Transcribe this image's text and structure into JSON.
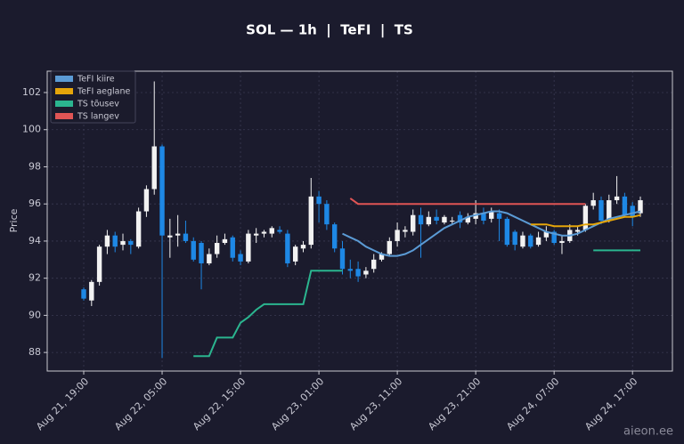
{
  "chart_data": {
    "type": "candlestick",
    "title": "SOL — 1h  |  TeFI  |  TS",
    "y_label": "Price",
    "watermark": "aieon.ee",
    "categories": [
      "Aug 21, 19:00",
      null,
      null,
      null,
      null,
      null,
      null,
      null,
      null,
      null,
      "Aug 22, 05:00",
      null,
      null,
      null,
      null,
      null,
      null,
      null,
      null,
      null,
      "Aug 22, 15:00",
      null,
      null,
      null,
      null,
      null,
      null,
      null,
      null,
      null,
      "Aug 23, 01:00",
      null,
      null,
      null,
      null,
      null,
      null,
      null,
      null,
      null,
      "Aug 23, 11:00",
      null,
      null,
      null,
      null,
      null,
      null,
      null,
      null,
      null,
      "Aug 23, 21:00",
      null,
      null,
      null,
      null,
      null,
      null,
      null,
      null,
      null,
      "Aug 24, 07:00",
      null,
      null,
      null,
      null,
      null,
      null,
      null,
      null,
      null,
      "Aug 24, 17:00",
      null
    ],
    "open": [
      91.4,
      90.8,
      91.8,
      93.7,
      94.3,
      93.8,
      94.0,
      93.7,
      95.6,
      96.8,
      99.1,
      94.2,
      94.3,
      94.4,
      94.0,
      93.9,
      92.8,
      93.3,
      93.9,
      94.2,
      93.3,
      92.9,
      94.3,
      94.4,
      94.4,
      94.6,
      94.4,
      92.9,
      93.6,
      93.8,
      96.4,
      96.0,
      94.9,
      93.6,
      92.5,
      92.5,
      92.2,
      92.5,
      93.0,
      93.3,
      94.0,
      94.5,
      94.5,
      95.4,
      94.9,
      95.3,
      95.0,
      95.1,
      95.4,
      95.0,
      95.2,
      95.5,
      95.2,
      95.5,
      95.2,
      94.5,
      93.7,
      94.3,
      93.8,
      94.2,
      94.5,
      93.9,
      94.0,
      94.5,
      94.6,
      95.9,
      96.2,
      95.1,
      96.2,
      96.4,
      95.9,
      95.5
    ],
    "high": [
      91.5,
      91.9,
      93.8,
      94.6,
      94.5,
      94.4,
      94.1,
      95.8,
      97.0,
      102.6,
      99.2,
      95.2,
      95.4,
      95.1,
      94.2,
      94.0,
      93.6,
      94.3,
      94.4,
      94.3,
      93.5,
      94.6,
      94.7,
      94.6,
      94.8,
      94.8,
      94.6,
      93.8,
      94.0,
      97.4,
      96.7,
      96.2,
      95.0,
      94.0,
      93.0,
      92.9,
      92.6,
      93.3,
      93.4,
      94.2,
      95.0,
      94.8,
      95.7,
      95.8,
      95.6,
      95.7,
      95.4,
      95.3,
      95.6,
      95.5,
      96.2,
      95.8,
      95.8,
      95.7,
      95.3,
      94.6,
      94.5,
      94.4,
      94.5,
      94.8,
      94.6,
      94.3,
      94.9,
      94.8,
      96.0,
      96.6,
      96.4,
      96.5,
      97.5,
      96.6,
      96.1,
      96.4
    ],
    "low": [
      90.8,
      90.5,
      91.6,
      93.3,
      93.4,
      93.5,
      93.3,
      93.6,
      95.3,
      96.5,
      87.7,
      93.1,
      93.7,
      93.9,
      92.9,
      91.4,
      92.7,
      93.1,
      93.8,
      92.9,
      92.7,
      92.8,
      93.9,
      94.2,
      94.2,
      94.4,
      92.6,
      92.7,
      93.4,
      93.6,
      95.0,
      94.6,
      93.4,
      92.2,
      92.0,
      91.8,
      92.0,
      92.3,
      92.9,
      93.2,
      93.7,
      94.2,
      94.3,
      93.1,
      94.8,
      94.9,
      94.9,
      94.9,
      94.7,
      94.9,
      94.9,
      94.9,
      95.0,
      94.0,
      93.7,
      93.5,
      93.6,
      93.6,
      93.7,
      94.0,
      93.8,
      93.3,
      93.9,
      94.3,
      94.5,
      95.7,
      94.9,
      95.0,
      96.0,
      95.3,
      94.8,
      95.3
    ],
    "close": [
      90.9,
      91.8,
      93.7,
      94.3,
      93.7,
      94.0,
      93.8,
      95.6,
      96.8,
      99.1,
      94.3,
      94.3,
      94.4,
      94.0,
      93.0,
      92.8,
      93.3,
      93.9,
      94.1,
      93.1,
      92.9,
      94.4,
      94.4,
      94.5,
      94.7,
      94.5,
      92.8,
      93.7,
      93.8,
      96.4,
      96.0,
      94.9,
      93.6,
      92.5,
      92.4,
      92.1,
      92.4,
      93.0,
      93.3,
      94.0,
      94.6,
      94.6,
      95.4,
      94.9,
      95.3,
      95.1,
      95.3,
      95.1,
      95.0,
      95.3,
      95.5,
      95.1,
      95.6,
      95.2,
      93.8,
      93.8,
      94.3,
      93.7,
      94.2,
      94.5,
      93.9,
      94.0,
      94.6,
      94.6,
      95.9,
      96.2,
      95.1,
      96.2,
      96.4,
      95.4,
      95.3,
      96.2
    ],
    "up_color": "#f2f2f2",
    "down_color": "#1e88e5",
    "series": [
      {
        "name": "TeFI kiire",
        "color": "#5b9bd5",
        "values": [
          null,
          null,
          null,
          null,
          null,
          null,
          null,
          null,
          null,
          null,
          null,
          null,
          null,
          null,
          null,
          null,
          null,
          null,
          null,
          null,
          null,
          null,
          null,
          null,
          null,
          null,
          null,
          null,
          null,
          null,
          null,
          null,
          null,
          94.4,
          94.2,
          94.0,
          93.7,
          93.5,
          93.3,
          93.2,
          93.2,
          93.3,
          93.5,
          93.8,
          94.1,
          94.4,
          94.7,
          94.9,
          95.1,
          95.3,
          95.4,
          95.5,
          95.6,
          95.6,
          95.5,
          95.3,
          95.1,
          94.9,
          94.7,
          94.5,
          94.4,
          94.3,
          94.3,
          94.4,
          94.6,
          94.8,
          95.0,
          95.2,
          95.3,
          95.4,
          95.5,
          95.6
        ]
      },
      {
        "name": "TeFI aeglane",
        "color": "#e5a50a",
        "values": [
          null,
          null,
          null,
          null,
          null,
          null,
          null,
          null,
          null,
          null,
          null,
          null,
          null,
          null,
          null,
          null,
          null,
          null,
          null,
          null,
          null,
          null,
          null,
          null,
          null,
          null,
          null,
          null,
          null,
          null,
          null,
          null,
          null,
          null,
          null,
          null,
          null,
          null,
          null,
          null,
          null,
          null,
          null,
          null,
          null,
          null,
          null,
          null,
          null,
          null,
          null,
          null,
          null,
          null,
          null,
          null,
          null,
          94.9,
          94.9,
          94.9,
          94.8,
          94.8,
          94.8,
          94.8,
          94.9,
          94.9,
          95.0,
          95.1,
          95.2,
          95.3,
          95.3,
          95.4
        ]
      },
      {
        "name": "TS tõusev",
        "color": "#2bb58f",
        "values": [
          null,
          null,
          null,
          null,
          null,
          null,
          null,
          null,
          null,
          null,
          null,
          null,
          null,
          null,
          87.8,
          87.8,
          87.8,
          88.8,
          88.8,
          88.8,
          89.6,
          89.9,
          90.3,
          90.6,
          90.6,
          90.6,
          90.6,
          90.6,
          90.6,
          92.4,
          92.4,
          92.4,
          92.4,
          92.4,
          null,
          null,
          null,
          null,
          null,
          null,
          null,
          null,
          null,
          null,
          null,
          null,
          null,
          null,
          null,
          null,
          null,
          null,
          null,
          null,
          null,
          null,
          null,
          null,
          null,
          null,
          null,
          null,
          null,
          null,
          null,
          93.5,
          93.5,
          93.5,
          93.5,
          93.5,
          93.5,
          93.5
        ]
      },
      {
        "name": "TS langev",
        "color": "#e05555",
        "values": [
          null,
          null,
          null,
          null,
          null,
          null,
          null,
          null,
          null,
          null,
          null,
          null,
          null,
          null,
          null,
          null,
          null,
          null,
          null,
          null,
          null,
          null,
          null,
          null,
          null,
          null,
          null,
          null,
          null,
          null,
          null,
          null,
          null,
          null,
          96.3,
          96.0,
          96.0,
          96.0,
          96.0,
          96.0,
          96.0,
          96.0,
          96.0,
          96.0,
          96.0,
          96.0,
          96.0,
          96.0,
          96.0,
          96.0,
          96.0,
          96.0,
          96.0,
          96.0,
          96.0,
          96.0,
          96.0,
          96.0,
          96.0,
          96.0,
          96.0,
          96.0,
          96.0,
          96.0,
          96.0,
          null,
          null,
          null,
          null,
          null,
          null,
          null
        ]
      }
    ],
    "ylim": [
      87.0,
      103.15
    ],
    "yticks": [
      88,
      90,
      92,
      94,
      96,
      98,
      100,
      102
    ],
    "grid": true,
    "legend": "upper-left"
  }
}
